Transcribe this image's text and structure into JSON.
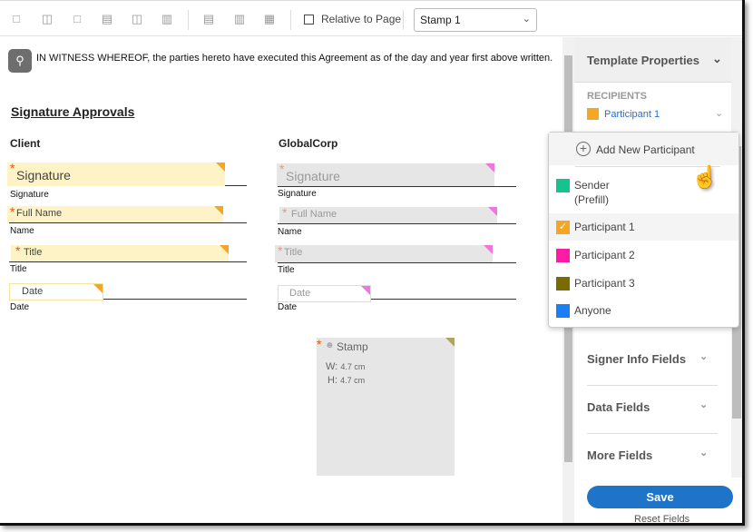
{
  "toolbar": {
    "icons": [
      "align-top-icon",
      "align-middle-icon",
      "align-bottom-icon",
      "align-left-icon",
      "align-center-icon",
      "align-right-icon",
      "distribute-vertical-icon",
      "distribute-horizontal-icon",
      "match-size-icon"
    ],
    "relative_to_page": "Relative to Page",
    "relative_checked": false,
    "field_select": "Stamp 1"
  },
  "document": {
    "witness_text": "IN WITNESS WHEREOF, the parties hereto have executed this Agreement as of the day and year first above written.",
    "heading": "Signature Approvals",
    "client": {
      "title": "Client",
      "fields": [
        {
          "placeholder": "Signature",
          "label": "Signature"
        },
        {
          "placeholder": "Full Name",
          "label": "Name"
        },
        {
          "placeholder": "Title",
          "label": "Title"
        },
        {
          "placeholder": "Date",
          "label": "Date"
        }
      ]
    },
    "globalcorp": {
      "title": "GlobalCorp",
      "fields": [
        {
          "placeholder": "Signature",
          "label": "Signature"
        },
        {
          "placeholder": "Full Name",
          "label": "Name"
        },
        {
          "placeholder": "Title",
          "label": "Title"
        },
        {
          "placeholder": "Date",
          "label": "Date"
        }
      ]
    },
    "stamp": {
      "label": "Stamp",
      "w_label": "W:",
      "w_value": "4.7 cm",
      "h_label": "H:",
      "h_value": "4.7 cm"
    }
  },
  "panel": {
    "title": "Template Properties",
    "recipients_label": "RECIPIENTS",
    "selected_recipient": "Participant 1",
    "sections": [
      "Signer Info Fields",
      "Data Fields",
      "More Fields"
    ],
    "save": "Save",
    "reset": "Reset Fields"
  },
  "dropdown": {
    "add": "Add New Participant",
    "items": [
      {
        "label": "Sender",
        "sub": "(Prefill)",
        "color": "#14c38e"
      },
      {
        "label": "Participant 1",
        "color": "#f5a623",
        "selected": true
      },
      {
        "label": "Participant 2",
        "color": "#ff1aa8"
      },
      {
        "label": "Participant 3",
        "color": "#7a6a00"
      },
      {
        "label": "Anyone",
        "color": "#1a7ff5"
      }
    ]
  },
  "colors": {
    "participant1": "#f5a623",
    "participant2": "#ff1aa8",
    "accent": "#1f73c8"
  }
}
